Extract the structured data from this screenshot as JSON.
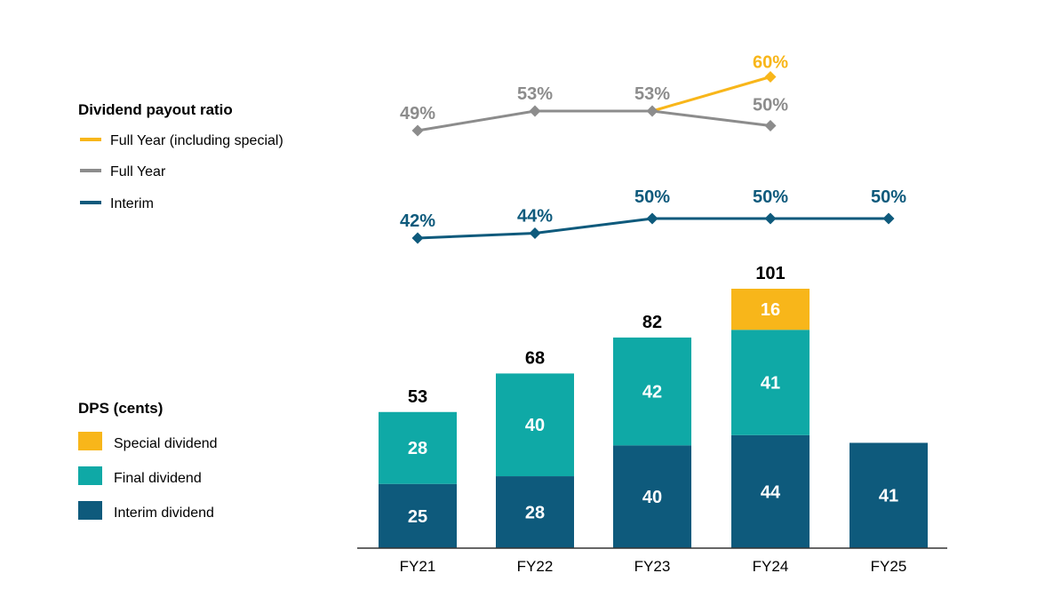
{
  "colors": {
    "interim": "#0e5a7c",
    "final": "#0fa9a6",
    "special": "#f8b61a",
    "full_year_line": "#8c8c8c",
    "full_year_special_line": "#f8b61a",
    "interim_line": "#0e5a7c",
    "axis": "#333333"
  },
  "legend_payout": {
    "title": "Dividend payout ratio",
    "items": [
      {
        "label": "Full Year (including special)",
        "color_key": "full_year_special_line"
      },
      {
        "label": "Full Year",
        "color_key": "full_year_line"
      },
      {
        "label": "Interim",
        "color_key": "interim_line"
      }
    ]
  },
  "legend_dps": {
    "title": "DPS (cents)",
    "items": [
      {
        "label": "Special dividend",
        "color_key": "special"
      },
      {
        "label": "Final dividend",
        "color_key": "final"
      },
      {
        "label": "Interim dividend",
        "color_key": "interim"
      }
    ]
  },
  "chart_data": [
    {
      "type": "bar",
      "stacked": true,
      "title": "DPS (cents)",
      "categories": [
        "FY21",
        "FY22",
        "FY23",
        "FY24",
        "FY25"
      ],
      "series": [
        {
          "name": "Interim dividend",
          "color_key": "interim",
          "values": [
            25,
            28,
            40,
            44,
            41
          ]
        },
        {
          "name": "Final dividend",
          "color_key": "final",
          "values": [
            28,
            40,
            42,
            41,
            null
          ]
        },
        {
          "name": "Special dividend",
          "color_key": "special",
          "values": [
            null,
            null,
            null,
            16,
            null
          ]
        }
      ],
      "totals": [
        53,
        68,
        82,
        101,
        null
      ],
      "total_labels": [
        "53",
        "68",
        "82",
        "101",
        ""
      ],
      "ylim": [
        0,
        101
      ]
    },
    {
      "type": "line",
      "title": "Dividend payout ratio",
      "categories": [
        "FY21",
        "FY22",
        "FY23",
        "FY24",
        "FY25"
      ],
      "series": [
        {
          "name": "Full Year",
          "color_key": "full_year_line",
          "values": [
            49,
            53,
            53,
            50,
            null
          ],
          "labels": [
            "49%",
            "53%",
            "53%",
            "50%",
            ""
          ]
        },
        {
          "name": "Full Year (including special)",
          "color_key": "full_year_special_line",
          "values": [
            null,
            null,
            53,
            60,
            null
          ],
          "labels": [
            "",
            "",
            "",
            "60%",
            ""
          ]
        },
        {
          "name": "Interim",
          "color_key": "interim_line",
          "values": [
            42,
            44,
            50,
            50,
            50
          ],
          "labels": [
            "42%",
            "44%",
            "50%",
            "50%",
            "50%"
          ]
        }
      ]
    }
  ]
}
